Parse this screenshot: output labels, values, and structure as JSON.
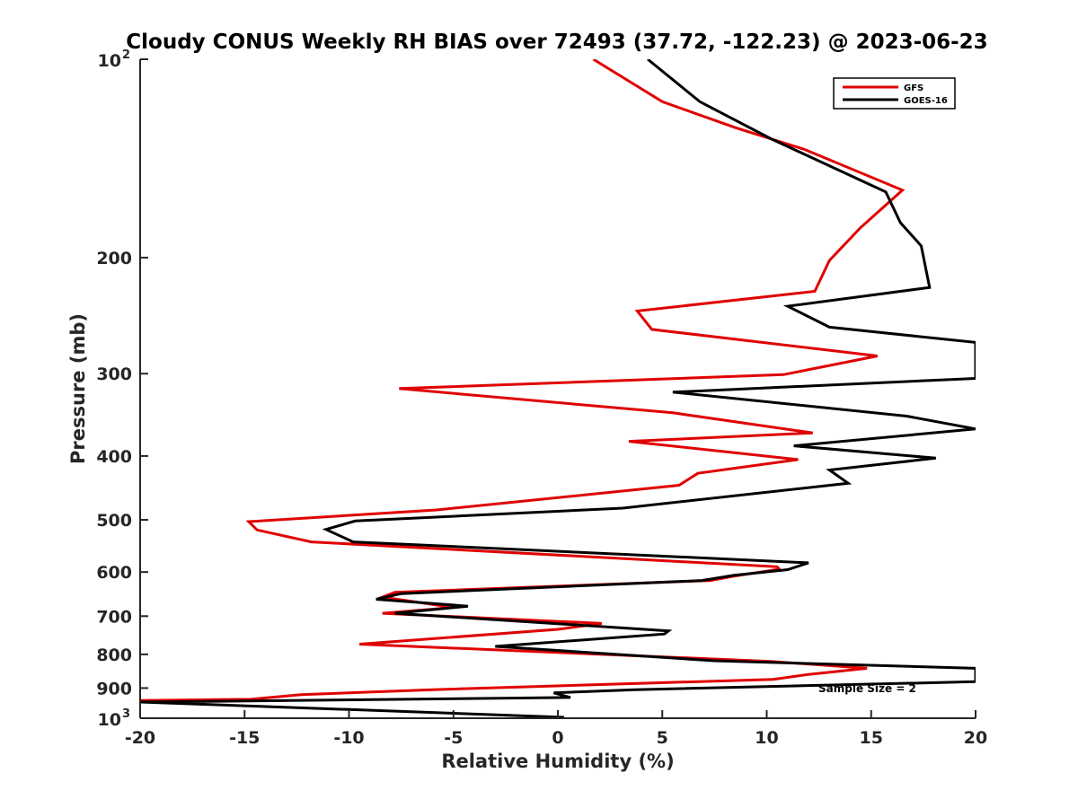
{
  "chart_data": {
    "type": "line",
    "title": "Cloudy CONUS Weekly RH BIAS over 72493 (37.72, -122.23) @ 2023-06-23",
    "xlabel": "Relative Humidity (%)",
    "ylabel": "Pressure (mb)",
    "xlim": [
      -20,
      20
    ],
    "ylim": [
      100,
      1000
    ],
    "y_scale": "log",
    "y_reversed": true,
    "grid": false,
    "legend_position": "top-right",
    "x_ticks": [
      -20,
      -15,
      -10,
      -5,
      0,
      5,
      10,
      15,
      20
    ],
    "x_tick_labels": [
      "-20",
      "-15",
      "-10",
      "-5",
      "0",
      "5",
      "10",
      "15",
      "20"
    ],
    "y_ticks": [
      {
        "value": 100,
        "label": "10",
        "sup": "2"
      },
      {
        "value": 200,
        "label": "200",
        "sup": ""
      },
      {
        "value": 300,
        "label": "300",
        "sup": ""
      },
      {
        "value": 400,
        "label": "400",
        "sup": ""
      },
      {
        "value": 500,
        "label": "500",
        "sup": ""
      },
      {
        "value": 600,
        "label": "600",
        "sup": ""
      },
      {
        "value": 700,
        "label": "700",
        "sup": ""
      },
      {
        "value": 800,
        "label": "800",
        "sup": ""
      },
      {
        "value": 900,
        "label": "900",
        "sup": ""
      },
      {
        "value": 1000,
        "label": "10",
        "sup": "3"
      }
    ],
    "annotation": "Sample Size = 2",
    "series": [
      {
        "name": "GFS",
        "color": "#e00000",
        "points": [
          [
            1.7,
            100
          ],
          [
            5.0,
            116
          ],
          [
            8.5,
            127
          ],
          [
            11.8,
            137
          ],
          [
            16.5,
            158
          ],
          [
            14.5,
            180
          ],
          [
            13.0,
            202
          ],
          [
            12.3,
            225
          ],
          [
            3.8,
            241
          ],
          [
            4.5,
            257
          ],
          [
            15.3,
            282
          ],
          [
            10.8,
            301
          ],
          [
            -7.6,
            316
          ],
          [
            5.5,
            344
          ],
          [
            12.2,
            369
          ],
          [
            3.4,
            380
          ],
          [
            11.5,
            405
          ],
          [
            6.7,
            425
          ],
          [
            5.8,
            443
          ],
          [
            -5.8,
            483
          ],
          [
            -14.8,
            503
          ],
          [
            -14.4,
            518
          ],
          [
            -11.8,
            540
          ],
          [
            10.5,
            589
          ],
          [
            10.6,
            594
          ],
          [
            8.4,
            609
          ],
          [
            7.3,
            618
          ],
          [
            -7.8,
            644
          ],
          [
            -8.4,
            655
          ],
          [
            -5.0,
            679
          ],
          [
            -8.4,
            693
          ],
          [
            2.1,
            718
          ],
          [
            0.0,
            733
          ],
          [
            -9.5,
            772
          ],
          [
            10.2,
            820
          ],
          [
            14.8,
            840
          ],
          [
            12.0,
            858
          ],
          [
            10.3,
            873
          ],
          [
            -6.0,
            905
          ],
          [
            -12.3,
            921
          ],
          [
            -14.7,
            936
          ],
          [
            -20.0,
            940
          ]
        ]
      },
      {
        "name": "GOES-16",
        "color": "#000000",
        "points": [
          [
            4.3,
            100
          ],
          [
            6.8,
            116
          ],
          [
            10.2,
            132
          ],
          [
            15.7,
            159
          ],
          [
            16.4,
            177
          ],
          [
            17.4,
            192
          ],
          [
            17.8,
            222
          ],
          [
            11.0,
            237
          ],
          [
            13.0,
            255
          ],
          [
            20.0,
            269
          ],
          [
            20.0,
            305
          ],
          [
            5.5,
            320
          ],
          [
            16.7,
            348
          ],
          [
            20.0,
            364
          ],
          [
            11.3,
            386
          ],
          [
            18.1,
            403
          ],
          [
            13.0,
            420
          ],
          [
            13.9,
            440
          ],
          [
            3.1,
            480
          ],
          [
            -9.7,
            502
          ],
          [
            -11.1,
            517
          ],
          [
            -9.8,
            540
          ],
          [
            12.0,
            581
          ],
          [
            11.0,
            595
          ],
          [
            8.4,
            607
          ],
          [
            6.9,
            618
          ],
          [
            -7.5,
            647
          ],
          [
            -8.7,
            660
          ],
          [
            -4.3,
            676
          ],
          [
            -7.8,
            693
          ],
          [
            5.3,
            737
          ],
          [
            5.1,
            745
          ],
          [
            -3.0,
            778
          ],
          [
            7.5,
            818
          ],
          [
            20.0,
            840
          ],
          [
            20.0,
            880
          ],
          [
            3.7,
            905
          ],
          [
            -0.2,
            915
          ],
          [
            0.6,
            930
          ],
          [
            -20.0,
            945
          ],
          [
            -10.0,
            970
          ],
          [
            0.3,
            997
          ]
        ]
      }
    ]
  }
}
